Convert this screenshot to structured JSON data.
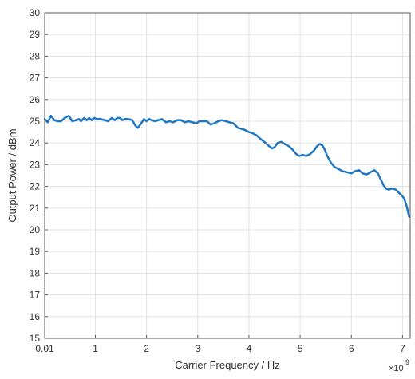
{
  "chart_data": {
    "type": "line",
    "title": "",
    "xlabel": "Carrier Frequency / Hz",
    "ylabel": "Output Power / dBm",
    "x_exponent_label": "×10",
    "x_exponent_power": "9",
    "xlim": [
      0.01,
      7.15
    ],
    "ylim": [
      15,
      30
    ],
    "grid": true,
    "x_ticks": [
      {
        "value": 0.01,
        "label": "0.01"
      },
      {
        "value": 1,
        "label": "1"
      },
      {
        "value": 2,
        "label": "2"
      },
      {
        "value": 3,
        "label": "3"
      },
      {
        "value": 4,
        "label": "4"
      },
      {
        "value": 5,
        "label": "5"
      },
      {
        "value": 6,
        "label": "6"
      },
      {
        "value": 7,
        "label": "7"
      }
    ],
    "y_ticks": [
      {
        "value": 15,
        "label": "15"
      },
      {
        "value": 16,
        "label": "16"
      },
      {
        "value": 17,
        "label": "17"
      },
      {
        "value": 18,
        "label": "18"
      },
      {
        "value": 19,
        "label": "19"
      },
      {
        "value": 20,
        "label": "20"
      },
      {
        "value": 21,
        "label": "21"
      },
      {
        "value": 22,
        "label": "22"
      },
      {
        "value": 23,
        "label": "23"
      },
      {
        "value": 24,
        "label": "24"
      },
      {
        "value": 25,
        "label": "25"
      },
      {
        "value": 26,
        "label": "26"
      },
      {
        "value": 27,
        "label": "27"
      },
      {
        "value": 28,
        "label": "28"
      },
      {
        "value": 29,
        "label": "29"
      },
      {
        "value": 30,
        "label": "30"
      }
    ],
    "colors": {
      "line": "#1f77c4",
      "grid": "#e3e3e3",
      "axis": "#555555",
      "text": "#333333"
    },
    "series": [
      {
        "x": [
          0.01,
          0.07,
          0.13,
          0.2,
          0.26,
          0.33,
          0.4,
          0.48,
          0.55,
          0.62,
          0.68,
          0.72,
          0.78,
          0.83,
          0.88,
          0.93,
          0.98,
          1.03,
          1.1,
          1.18,
          1.25,
          1.32,
          1.38,
          1.43,
          1.48,
          1.53,
          1.58,
          1.65,
          1.72,
          1.78,
          1.83,
          1.88,
          1.95,
          2.0,
          2.05,
          2.1,
          2.17,
          2.23,
          2.3,
          2.38,
          2.45,
          2.52,
          2.6,
          2.67,
          2.75,
          2.82,
          2.9,
          2.97,
          3.03,
          3.1,
          3.18,
          3.25,
          3.32,
          3.4,
          3.47,
          3.55,
          3.62,
          3.7,
          3.78,
          3.85,
          3.92,
          4.0,
          4.07,
          4.15,
          4.22,
          4.3,
          4.37,
          4.45,
          4.5,
          4.56,
          4.63,
          4.7,
          4.78,
          4.85,
          4.92,
          4.98,
          5.05,
          5.12,
          5.2,
          5.27,
          5.33,
          5.38,
          5.43,
          5.48,
          5.53,
          5.6,
          5.67,
          5.75,
          5.83,
          5.92,
          6.0,
          6.07,
          6.15,
          6.22,
          6.3,
          6.37,
          6.45,
          6.52,
          6.58,
          6.63,
          6.68,
          6.73,
          6.8,
          6.87,
          6.93,
          6.98,
          7.03,
          7.08,
          7.13
        ],
        "y": [
          25.1,
          24.95,
          25.25,
          25.05,
          25.0,
          25.0,
          25.15,
          25.25,
          25.0,
          25.05,
          25.1,
          25.0,
          25.15,
          25.05,
          25.15,
          25.05,
          25.15,
          25.1,
          25.1,
          25.05,
          25.0,
          25.15,
          25.05,
          25.15,
          25.15,
          25.05,
          25.1,
          25.1,
          25.05,
          24.8,
          24.7,
          24.85,
          25.1,
          25.0,
          25.1,
          25.05,
          25.0,
          25.05,
          25.1,
          24.95,
          25.0,
          24.95,
          25.05,
          25.05,
          24.95,
          25.0,
          24.95,
          24.9,
          25.0,
          25.0,
          25.0,
          24.85,
          24.9,
          25.0,
          25.05,
          25.0,
          24.95,
          24.9,
          24.7,
          24.65,
          24.6,
          24.5,
          24.45,
          24.35,
          24.2,
          24.05,
          23.9,
          23.75,
          23.8,
          24.0,
          24.05,
          23.95,
          23.85,
          23.7,
          23.5,
          23.4,
          23.45,
          23.4,
          23.5,
          23.65,
          23.85,
          23.95,
          23.9,
          23.7,
          23.4,
          23.1,
          22.9,
          22.8,
          22.7,
          22.65,
          22.6,
          22.7,
          22.75,
          22.6,
          22.55,
          22.65,
          22.75,
          22.6,
          22.3,
          22.05,
          21.9,
          21.85,
          21.9,
          21.85,
          21.7,
          21.6,
          21.45,
          21.1,
          20.6
        ]
      }
    ]
  }
}
